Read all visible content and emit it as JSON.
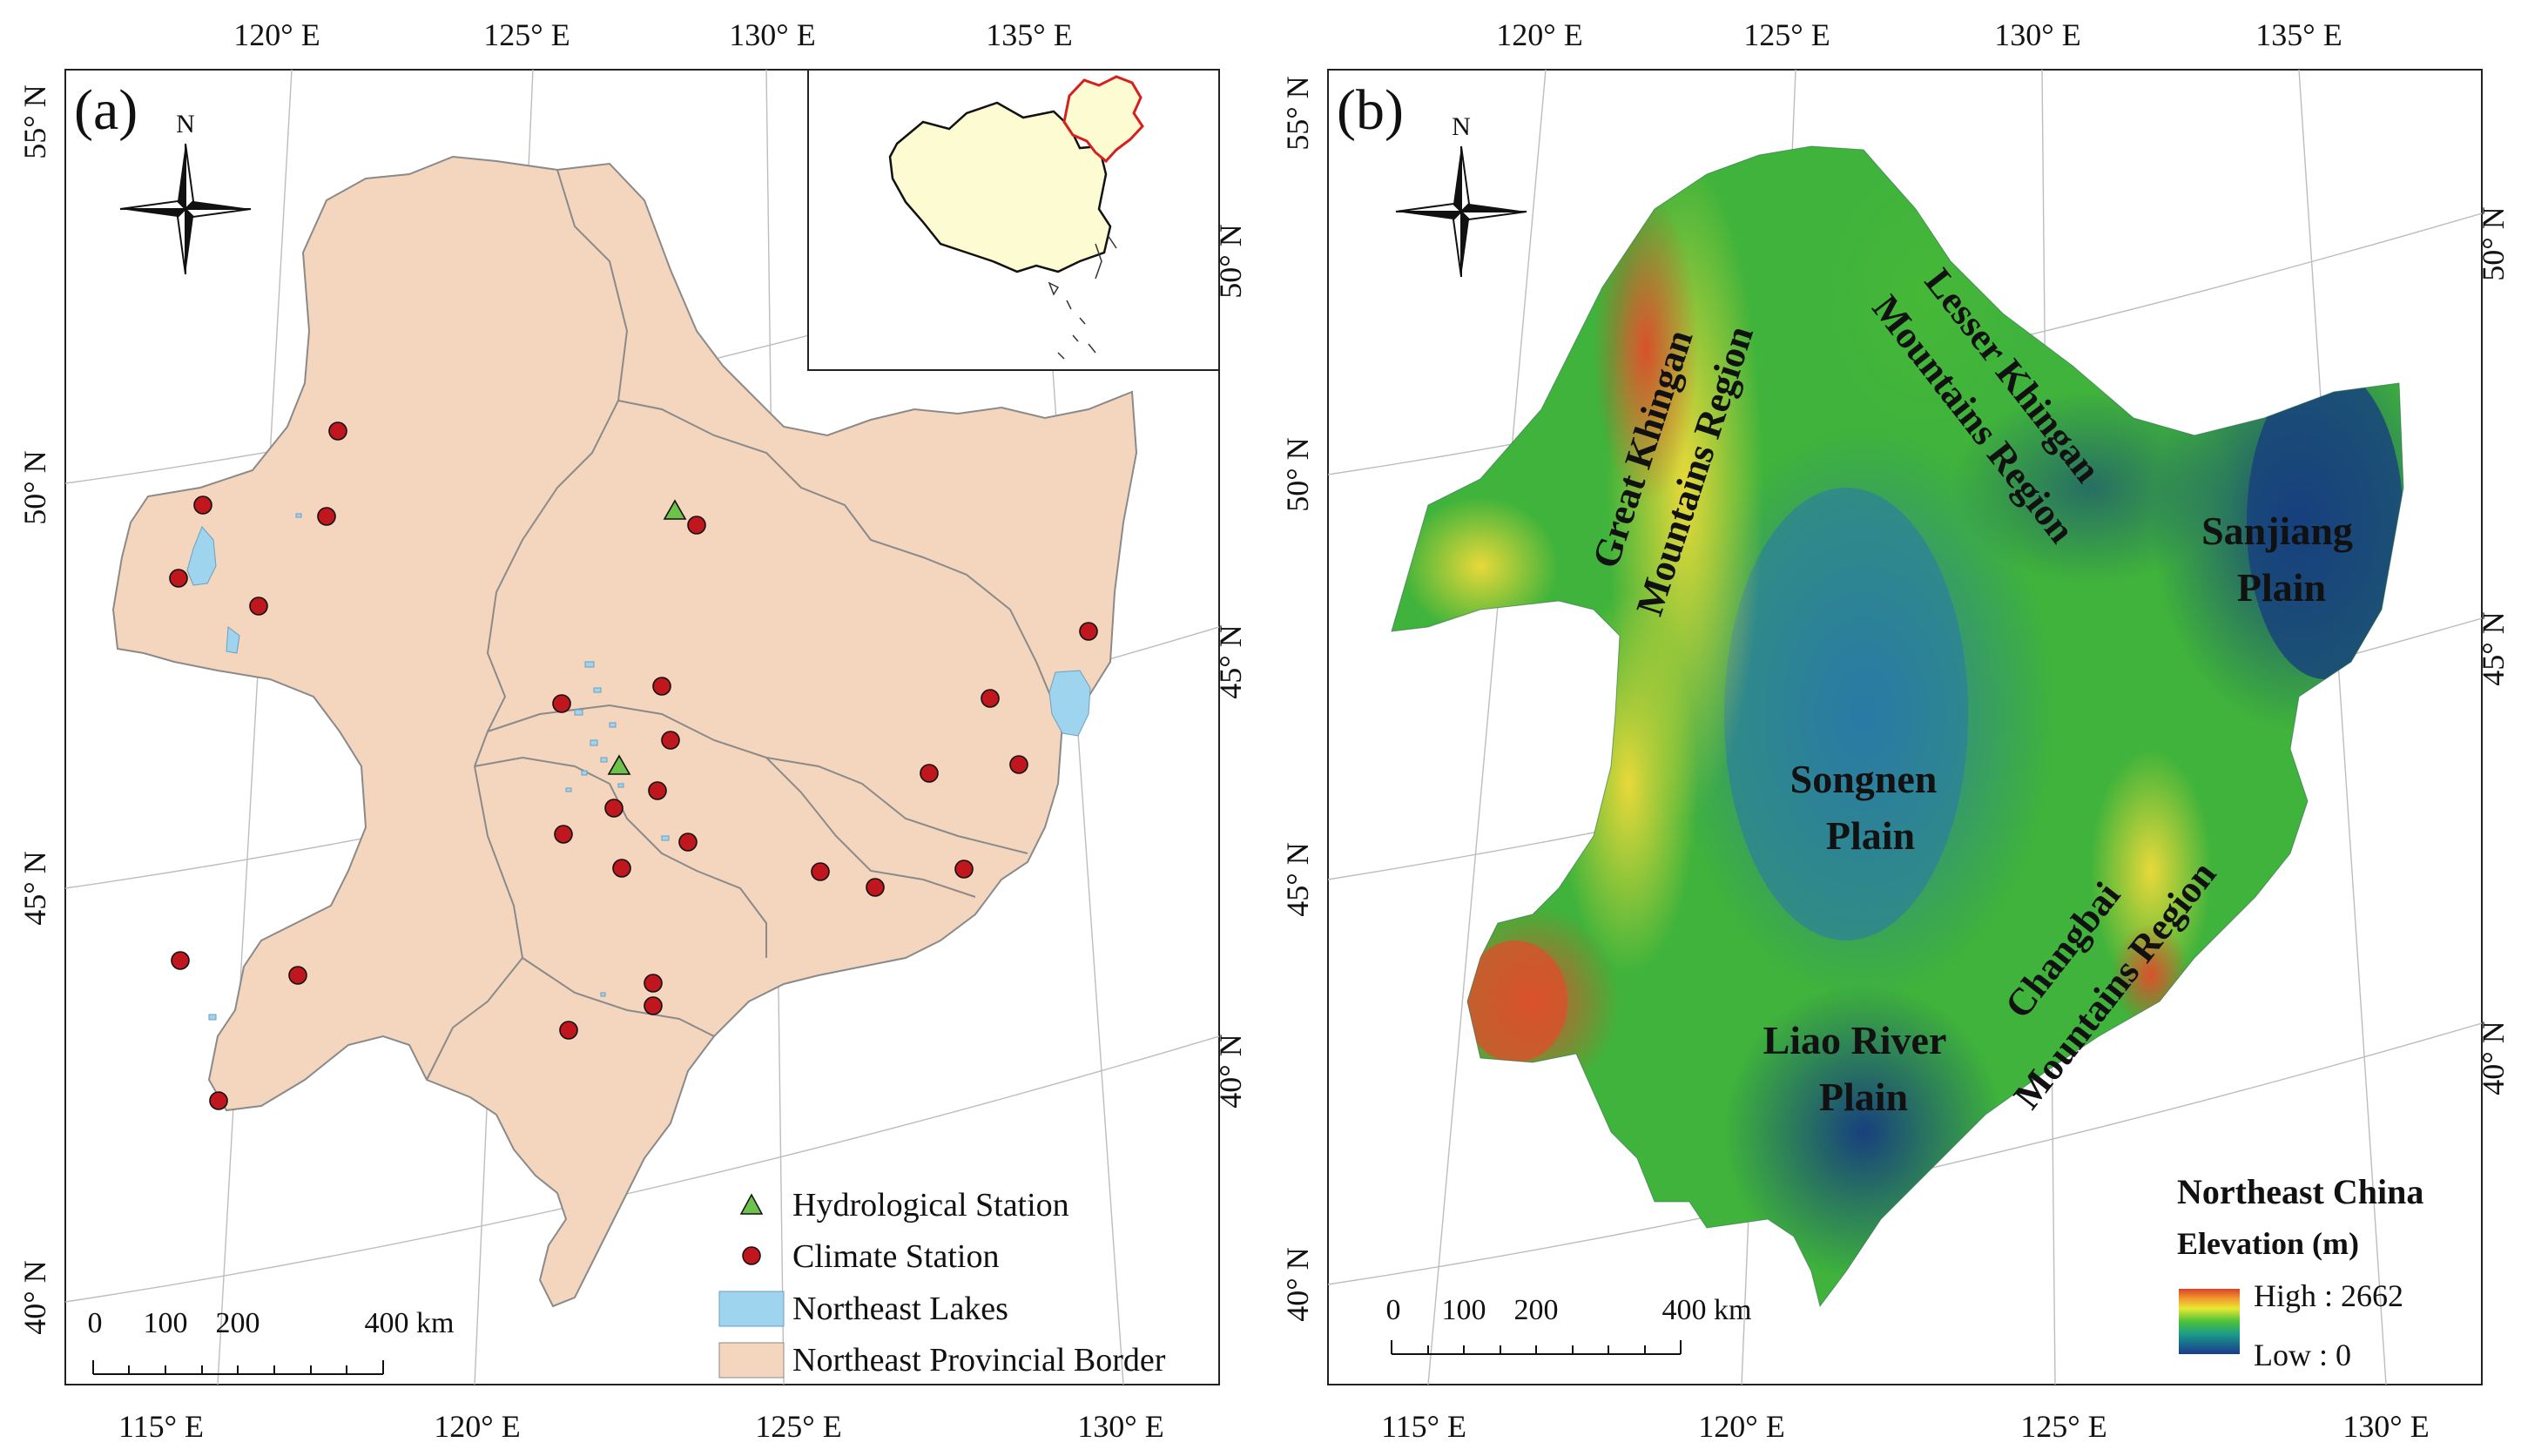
{
  "panel_a": {
    "label": "(a)",
    "top_ticks": [
      "120° E",
      "125° E",
      "130° E",
      "135° E"
    ],
    "bottom_ticks": [
      "115° E",
      "120° E",
      "125° E",
      "130° E"
    ],
    "left_ticks": [
      "55° N",
      "50° N",
      "45° N",
      "40° N"
    ],
    "right_ticks": [
      "50° N",
      "45° N",
      "40° N"
    ],
    "north_label": "N",
    "scale": {
      "labels": [
        "0",
        "100",
        "200",
        "400 km"
      ]
    },
    "legend": [
      {
        "label": "Hydrological Station",
        "symbol": "triangle",
        "color": "#6cc24a"
      },
      {
        "label": "Climate Station",
        "symbol": "dot",
        "color": "#c0161d"
      },
      {
        "label": "Northeast Lakes",
        "symbol": "rect",
        "color": "#9fd4ef"
      },
      {
        "label": "Northeast Provincial Border",
        "symbol": "rect",
        "color": "#f3d6bd"
      }
    ]
  },
  "panel_b": {
    "label": "(b)",
    "top_ticks": [
      "120° E",
      "125° E",
      "130° E",
      "135° E"
    ],
    "bottom_ticks": [
      "115° E",
      "120° E",
      "125° E",
      "130° E"
    ],
    "left_ticks": [
      "55° N",
      "50° N",
      "45° N",
      "40° N"
    ],
    "right_ticks": [
      "50° N",
      "45° N",
      "40° N"
    ],
    "north_label": "N",
    "scale": {
      "labels": [
        "0",
        "100",
        "200",
        "400 km"
      ]
    },
    "regions": {
      "great_khingan_1": "Great Khingan",
      "great_khingan_2": "Mountains Region",
      "lesser_khingan_1": "Lesser Khingan",
      "lesser_khingan_2": "Mountains Region",
      "sanjiang_1": "Sanjiang",
      "sanjiang_2": "Plain",
      "songnen_1": "Songnen",
      "songnen_2": "Plain",
      "liao_1": "Liao River",
      "liao_2": "Plain",
      "changbai_1": "Changbai",
      "changbai_2": "Mountains Region"
    },
    "legend": {
      "title": "Northeast China",
      "subtitle": "Elevation (m)",
      "high": "High : 2662",
      "low": "Low : 0"
    }
  },
  "colors": {
    "province_fill": "#f3d6bd",
    "lake": "#9fd4ef",
    "station": "#c0161d",
    "hydro": "#6cc24a",
    "china_fill": "#fdfbd2",
    "ne_outline": "#d62020"
  }
}
